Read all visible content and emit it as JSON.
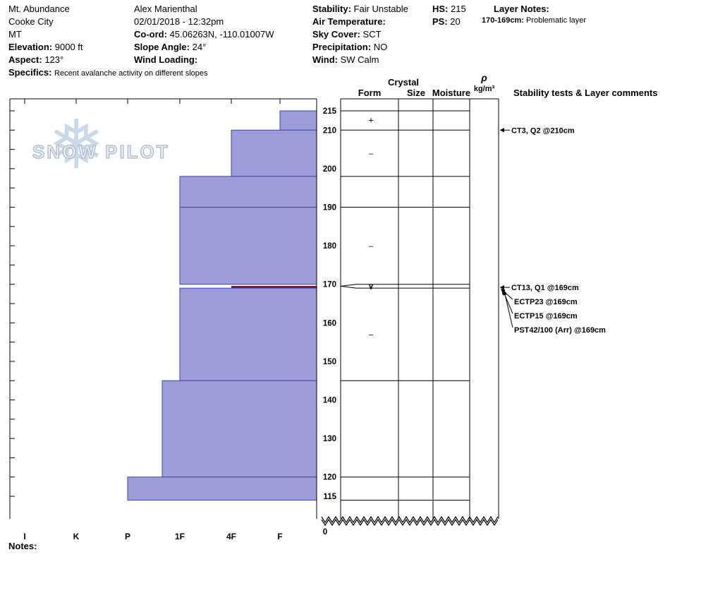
{
  "header": {
    "site": {
      "name": "Mt. Abundance",
      "area": "Cooke City",
      "state": "MT",
      "elevation_label": "Elevation:",
      "elevation": "9000 ft",
      "aspect_label": "Aspect:",
      "aspect": "123°",
      "specifics_label": "Specifics:",
      "specifics": "Recent avalanche activity on different slopes"
    },
    "observer": {
      "name": "Alex Marienthal",
      "datetime": "02/01/2018 - 12:32pm",
      "coord_label": "Co-ord:",
      "coord": "45.06263N, -110.01007W",
      "slope_angle_label": "Slope Angle:",
      "slope_angle": "24°",
      "wind_loading_label": "Wind Loading:",
      "wind_loading": ""
    },
    "conditions": {
      "stability_label": "Stability:",
      "stability": "Fair Unstable",
      "air_temp_label": "Air Temperature:",
      "air_temp": "",
      "sky_label": "Sky Cover:",
      "sky": "SCT",
      "precip_label": "Precipitation:",
      "precip": "NO",
      "wind_label": "Wind:",
      "wind": "SW Calm"
    },
    "snowpack": {
      "hs_label": "HS:",
      "hs": "215",
      "ps_label": "PS:",
      "ps": "20"
    },
    "layer_notes": {
      "label": "Layer Notes:",
      "note_depth": "170-169cm:",
      "note_text": "Problematic layer"
    }
  },
  "columns": {
    "crystal": "Crystal",
    "form": "Form",
    "size": "Size",
    "moisture": "Moisture",
    "rho": "ρ",
    "rho_unit": "kg/m³",
    "comments": "Stability tests & Layer comments"
  },
  "chart_data": {
    "type": "snow-profile-hardness-bar",
    "depth_axis": {
      "unit": "cm",
      "surface_cm": 215,
      "pit_bottom_cm": 114,
      "ticks": [
        215,
        210,
        200,
        190,
        180,
        170,
        160,
        150,
        140,
        130,
        120,
        115
      ],
      "bottom_label": "0"
    },
    "hardness_axis": {
      "categories": [
        "I",
        "K",
        "P",
        "1F",
        "4F",
        "F"
      ]
    },
    "layers": [
      {
        "top_cm": 215,
        "bottom_cm": 210,
        "hardness": "F",
        "form_symbol": "+"
      },
      {
        "top_cm": 210,
        "bottom_cm": 198,
        "hardness": "4F",
        "form_symbol": "–"
      },
      {
        "top_cm": 198,
        "bottom_cm": 190,
        "hardness": "1F",
        "form_symbol": ""
      },
      {
        "top_cm": 190,
        "bottom_cm": 170,
        "hardness": "1F",
        "form_symbol": "–"
      },
      {
        "top_cm": 170,
        "bottom_cm": 169,
        "hardness": "4F",
        "form_symbol": "∨",
        "flagged": true
      },
      {
        "top_cm": 169,
        "bottom_cm": 145,
        "hardness": "1F",
        "form_symbol": "–"
      },
      {
        "top_cm": 145,
        "bottom_cm": 120,
        "hardness": "1F+",
        "form_symbol": ""
      },
      {
        "top_cm": 120,
        "bottom_cm": 114,
        "hardness": "P",
        "form_symbol": ""
      }
    ],
    "stability_tests": [
      {
        "label": "CT3, Q2 @210cm",
        "depth_cm": 210
      },
      {
        "label": "CT13, Q1 @169cm",
        "depth_cm": 169
      },
      {
        "label": "ECTP23 @169cm",
        "depth_cm": 169
      },
      {
        "label": "ECTP15 @169cm",
        "depth_cm": 169
      },
      {
        "label": "PST42/100 (Arr) @169cm",
        "depth_cm": 169
      }
    ]
  },
  "footer": {
    "notes_label": "Notes:"
  },
  "logo": {
    "text": "SNOW PILOT"
  },
  "colors": {
    "bar_fill": "#9c9cd9",
    "bar_border": "#4343b0",
    "flag_fill": "#7c0f2e",
    "logo_flake": "#c9d9e8"
  }
}
